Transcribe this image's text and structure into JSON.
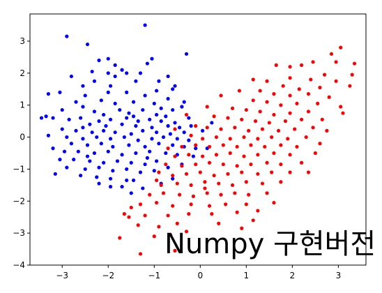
{
  "caption": "Numpy 구현버전",
  "chart_data": {
    "type": "scatter",
    "title": "",
    "xlabel": "",
    "ylabel": "",
    "xlim": [
      -3.7,
      3.6
    ],
    "ylim": [
      -4.0,
      3.85
    ],
    "grid": false,
    "legend": "none",
    "x_ticks": [
      -3,
      -2,
      -1,
      0,
      1,
      2,
      3
    ],
    "y_ticks": [
      -4,
      -3,
      -2,
      -1,
      0,
      1,
      2,
      3
    ],
    "x_tick_labels": [
      "−3",
      "−2",
      "−1",
      "0",
      "1",
      "2",
      "3"
    ],
    "y_tick_labels": [
      "−4",
      "−3",
      "−2",
      "−1",
      "0",
      "1",
      "2",
      "3"
    ],
    "series": [
      {
        "color": "#0000ff",
        "points": [
          [
            -1.2,
            3.5
          ],
          [
            -2.9,
            3.15
          ],
          [
            -2.45,
            2.9
          ],
          [
            -2.0,
            2.45
          ],
          [
            -1.05,
            2.45
          ],
          [
            -0.3,
            2.6
          ],
          [
            -1.7,
            2.1
          ],
          [
            -2.0,
            2.0
          ],
          [
            -1.6,
            2.0
          ],
          [
            -1.15,
            2.3
          ],
          [
            -2.8,
            1.9
          ],
          [
            -1.4,
            1.75
          ],
          [
            -0.7,
            1.9
          ],
          [
            -2.3,
            1.75
          ],
          [
            -2.55,
            1.6
          ],
          [
            -1.95,
            1.6
          ],
          [
            -3.05,
            1.4
          ],
          [
            -3.3,
            1.35
          ],
          [
            -2.0,
            1.4
          ],
          [
            -1.6,
            1.4
          ],
          [
            -1.2,
            1.3
          ],
          [
            -0.95,
            1.45
          ],
          [
            -0.7,
            1.2
          ],
          [
            -2.5,
            1.3
          ],
          [
            -2.7,
            1.1
          ],
          [
            -2.15,
            1.15
          ],
          [
            -1.85,
            1.05
          ],
          [
            -1.45,
            1.1
          ],
          [
            -1.0,
            1.05
          ],
          [
            -0.85,
            0.9
          ],
          [
            -0.6,
            0.85
          ],
          [
            -0.4,
            0.95
          ],
          [
            -3.0,
            0.85
          ],
          [
            -2.55,
            0.95
          ],
          [
            -2.3,
            0.8
          ],
          [
            -1.75,
            0.85
          ],
          [
            -1.55,
            0.75
          ],
          [
            -1.25,
            0.85
          ],
          [
            -0.95,
            0.7
          ],
          [
            -0.75,
            0.65
          ],
          [
            -3.35,
            0.65
          ],
          [
            -3.2,
            0.6
          ],
          [
            -2.85,
            0.55
          ],
          [
            -2.6,
            0.6
          ],
          [
            -2.2,
            0.5
          ],
          [
            -1.95,
            0.55
          ],
          [
            -1.6,
            0.6
          ],
          [
            -1.35,
            0.5
          ],
          [
            -1.1,
            0.55
          ],
          [
            -0.85,
            0.5
          ],
          [
            -0.55,
            0.45
          ],
          [
            -2.4,
            0.4
          ],
          [
            -2.05,
            0.35
          ],
          [
            -1.7,
            0.4
          ],
          [
            -1.4,
            0.35
          ],
          [
            -1.05,
            0.3
          ],
          [
            -0.7,
            0.35
          ],
          [
            -0.45,
            0.3
          ],
          [
            -0.2,
            0.35
          ],
          [
            -3.0,
            0.25
          ],
          [
            -2.7,
            0.2
          ],
          [
            -2.35,
            0.15
          ],
          [
            -2.1,
            0.2
          ],
          [
            -1.85,
            0.15
          ],
          [
            -1.5,
            0.1
          ],
          [
            -1.25,
            0.2
          ],
          [
            -0.95,
            0.15
          ],
          [
            -0.65,
            0.1
          ],
          [
            -0.35,
            0.15
          ],
          [
            -3.3,
            0.05
          ],
          [
            -2.9,
            0.0
          ],
          [
            -2.55,
            -0.05
          ],
          [
            -2.25,
            0.0
          ],
          [
            -1.95,
            -0.05
          ],
          [
            -1.65,
            0.0
          ],
          [
            -1.35,
            -0.1
          ],
          [
            -1.05,
            -0.05
          ],
          [
            -0.8,
            0.0
          ],
          [
            -0.5,
            -0.05
          ],
          [
            -0.25,
            -0.1
          ],
          [
            -2.8,
            -0.2
          ],
          [
            -2.45,
            -0.25
          ],
          [
            -2.15,
            -0.2
          ],
          [
            -1.9,
            -0.3
          ],
          [
            -1.55,
            -0.25
          ],
          [
            -1.2,
            -0.3
          ],
          [
            -0.9,
            -0.2
          ],
          [
            -0.6,
            -0.25
          ],
          [
            -0.35,
            -0.3
          ],
          [
            -3.2,
            -0.35
          ],
          [
            -2.65,
            -0.45
          ],
          [
            -2.3,
            -0.5
          ],
          [
            -2.0,
            -0.45
          ],
          [
            -1.7,
            -0.55
          ],
          [
            -1.4,
            -0.5
          ],
          [
            -1.1,
            -0.45
          ],
          [
            -0.75,
            -0.5
          ],
          [
            -0.5,
            -0.55
          ],
          [
            -3.05,
            -0.7
          ],
          [
            -2.75,
            -0.7
          ],
          [
            -2.4,
            -0.75
          ],
          [
            -2.1,
            -0.8
          ],
          [
            -1.8,
            -0.75
          ],
          [
            -1.5,
            -0.8
          ],
          [
            -1.2,
            -0.85
          ],
          [
            -0.95,
            -0.75
          ],
          [
            -2.9,
            -0.95
          ],
          [
            -2.5,
            -1.0
          ],
          [
            -2.2,
            -0.95
          ],
          [
            -1.9,
            -1.05
          ],
          [
            -1.6,
            -1.0
          ],
          [
            -1.3,
            -1.1
          ],
          [
            -1.0,
            -1.05
          ],
          [
            -3.15,
            -1.15
          ],
          [
            -2.6,
            -1.2
          ],
          [
            -2.25,
            -1.25
          ],
          [
            -1.95,
            -1.3
          ],
          [
            -1.45,
            -1.35
          ],
          [
            -1.7,
            -1.55
          ],
          [
            -1.95,
            -1.55
          ],
          [
            -2.2,
            -1.45
          ],
          [
            -1.25,
            -1.6
          ],
          [
            -1.5,
            -1.75
          ],
          [
            -0.85,
            -1.45
          ],
          [
            -0.6,
            -1.3
          ],
          [
            -0.4,
            -0.85
          ],
          [
            -0.15,
            -0.6
          ],
          [
            0.15,
            -0.35
          ],
          [
            -0.25,
            0.6
          ],
          [
            -0.6,
            1.5
          ],
          [
            -1.85,
            1.9
          ],
          [
            -2.35,
            2.05
          ],
          [
            -2.2,
            2.4
          ],
          [
            -1.85,
            2.25
          ],
          [
            -1.3,
            2.0
          ],
          [
            -0.9,
            1.75
          ],
          [
            -0.55,
            1.6
          ],
          [
            -0.35,
            1.1
          ],
          [
            -2.1,
            0.7
          ],
          [
            -1.45,
            0.65
          ],
          [
            -1.15,
            -0.65
          ],
          [
            -2.45,
            -0.6
          ],
          [
            -2.95,
            -0.45
          ],
          [
            -3.45,
            0.6
          ],
          [
            0.25,
            0.45
          ],
          [
            0.05,
            0.2
          ],
          [
            -0.1,
            -0.35
          ],
          [
            -1.6,
            -1.35
          ],
          [
            -0.7,
            -0.95
          ],
          [
            -2.55,
            0.3
          ]
        ]
      },
      {
        "color": "#ff0000",
        "points": [
          [
            3.05,
            2.8
          ],
          [
            2.85,
            2.6
          ],
          [
            2.45,
            2.35
          ],
          [
            3.35,
            2.3
          ],
          [
            2.2,
            2.25
          ],
          [
            2.7,
            1.95
          ],
          [
            2.4,
            1.8
          ],
          [
            2.95,
            1.75
          ],
          [
            1.95,
            1.85
          ],
          [
            3.25,
            1.6
          ],
          [
            2.6,
            1.55
          ],
          [
            2.15,
            1.5
          ],
          [
            1.8,
            1.6
          ],
          [
            2.35,
            1.35
          ],
          [
            1.95,
            1.3
          ],
          [
            2.8,
            1.25
          ],
          [
            1.6,
            1.35
          ],
          [
            1.3,
            1.45
          ],
          [
            2.55,
            1.05
          ],
          [
            2.1,
            1.05
          ],
          [
            1.75,
            1.0
          ],
          [
            1.45,
            1.1
          ],
          [
            1.15,
            1.15
          ],
          [
            3.05,
            0.95
          ],
          [
            3.1,
            0.75
          ],
          [
            2.35,
            0.8
          ],
          [
            1.95,
            0.75
          ],
          [
            1.6,
            0.7
          ],
          [
            1.3,
            0.8
          ],
          [
            1.0,
            0.85
          ],
          [
            0.7,
            0.9
          ],
          [
            2.65,
            0.55
          ],
          [
            2.2,
            0.55
          ],
          [
            1.85,
            0.5
          ],
          [
            1.5,
            0.45
          ],
          [
            1.2,
            0.5
          ],
          [
            0.9,
            0.55
          ],
          [
            0.6,
            0.6
          ],
          [
            0.3,
            0.65
          ],
          [
            2.45,
            0.3
          ],
          [
            2.05,
            0.25
          ],
          [
            1.7,
            0.2
          ],
          [
            1.35,
            0.25
          ],
          [
            1.05,
            0.2
          ],
          [
            0.75,
            0.3
          ],
          [
            0.45,
            0.25
          ],
          [
            0.15,
            0.3
          ],
          [
            -0.1,
            0.35
          ],
          [
            2.3,
            0.0
          ],
          [
            1.9,
            -0.05
          ],
          [
            1.55,
            0.0
          ],
          [
            1.25,
            -0.05
          ],
          [
            0.95,
            0.0
          ],
          [
            0.65,
            -0.05
          ],
          [
            0.35,
            0.0
          ],
          [
            0.05,
            -0.05
          ],
          [
            -0.2,
            0.05
          ],
          [
            2.6,
            -0.2
          ],
          [
            2.1,
            -0.3
          ],
          [
            1.75,
            -0.25
          ],
          [
            1.4,
            -0.3
          ],
          [
            1.1,
            -0.25
          ],
          [
            0.8,
            -0.3
          ],
          [
            0.5,
            -0.25
          ],
          [
            0.2,
            -0.3
          ],
          [
            -0.1,
            -0.25
          ],
          [
            -0.4,
            -0.3
          ],
          [
            1.95,
            -0.55
          ],
          [
            1.6,
            -0.5
          ],
          [
            1.25,
            -0.55
          ],
          [
            0.95,
            -0.6
          ],
          [
            0.65,
            -0.5
          ],
          [
            0.35,
            -0.55
          ],
          [
            0.05,
            -0.6
          ],
          [
            -0.25,
            -0.55
          ],
          [
            -0.55,
            -0.6
          ],
          [
            2.2,
            -0.8
          ],
          [
            1.75,
            -0.85
          ],
          [
            1.45,
            -0.8
          ],
          [
            1.1,
            -0.85
          ],
          [
            0.8,
            -0.9
          ],
          [
            0.5,
            -0.85
          ],
          [
            0.2,
            -0.8
          ],
          [
            -0.1,
            -0.85
          ],
          [
            -0.4,
            -0.9
          ],
          [
            -0.75,
            -0.85
          ],
          [
            1.95,
            -1.1
          ],
          [
            1.55,
            -1.1
          ],
          [
            1.25,
            -1.15
          ],
          [
            0.9,
            -1.1
          ],
          [
            0.6,
            -1.15
          ],
          [
            0.3,
            -1.2
          ],
          [
            0.0,
            -1.1
          ],
          [
            -0.3,
            -1.15
          ],
          [
            -0.6,
            -1.2
          ],
          [
            -0.9,
            -1.1
          ],
          [
            1.75,
            -1.4
          ],
          [
            1.35,
            -1.45
          ],
          [
            1.0,
            -1.4
          ],
          [
            0.7,
            -1.5
          ],
          [
            0.4,
            -1.45
          ],
          [
            0.1,
            -1.4
          ],
          [
            -0.2,
            -1.5
          ],
          [
            -0.5,
            -1.45
          ],
          [
            -0.85,
            -1.5
          ],
          [
            1.45,
            -1.75
          ],
          [
            1.05,
            -1.8
          ],
          [
            0.75,
            -1.75
          ],
          [
            0.45,
            -1.8
          ],
          [
            0.15,
            -1.75
          ],
          [
            -0.15,
            -1.85
          ],
          [
            -0.45,
            -1.8
          ],
          [
            -0.8,
            -1.75
          ],
          [
            -1.1,
            -1.8
          ],
          [
            1.6,
            -2.05
          ],
          [
            1.0,
            -2.1
          ],
          [
            0.55,
            -2.1
          ],
          [
            0.2,
            -2.15
          ],
          [
            -0.2,
            -2.1
          ],
          [
            -0.6,
            -2.15
          ],
          [
            -0.95,
            -2.05
          ],
          [
            -1.3,
            -2.1
          ],
          [
            -1.5,
            -2.2
          ],
          [
            1.25,
            -2.3
          ],
          [
            0.8,
            -2.35
          ],
          [
            0.25,
            -2.4
          ],
          [
            -0.25,
            -2.4
          ],
          [
            -0.7,
            -2.45
          ],
          [
            -1.2,
            -2.45
          ],
          [
            -1.55,
            -2.5
          ],
          [
            -1.65,
            -2.4
          ],
          [
            0.4,
            -2.7
          ],
          [
            -0.5,
            -2.7
          ],
          [
            -0.9,
            -2.8
          ],
          [
            -1.35,
            -2.75
          ],
          [
            -0.3,
            -2.95
          ],
          [
            -0.65,
            -3.05
          ],
          [
            -1.0,
            -3.1
          ],
          [
            -1.75,
            -3.15
          ],
          [
            -0.55,
            -3.55
          ],
          [
            -1.3,
            -3.65
          ],
          [
            3.3,
            1.95
          ],
          [
            1.95,
            2.2
          ],
          [
            1.45,
            1.75
          ],
          [
            2.95,
            2.35
          ],
          [
            0.45,
            1.3
          ],
          [
            0.15,
            0.95
          ],
          [
            -0.3,
            0.7
          ],
          [
            -0.55,
            0.25
          ],
          [
            2.75,
            0.2
          ],
          [
            2.5,
            -0.5
          ],
          [
            2.35,
            -1.1
          ],
          [
            1.15,
            -2.6
          ],
          [
            0.9,
            -2.85
          ],
          [
            0.1,
            -1.6
          ],
          [
            -0.95,
            -1.35
          ],
          [
            -0.7,
            -0.35
          ],
          [
            0.85,
            1.45
          ],
          [
            1.15,
            1.8
          ],
          [
            1.65,
            2.25
          ]
        ]
      }
    ]
  }
}
